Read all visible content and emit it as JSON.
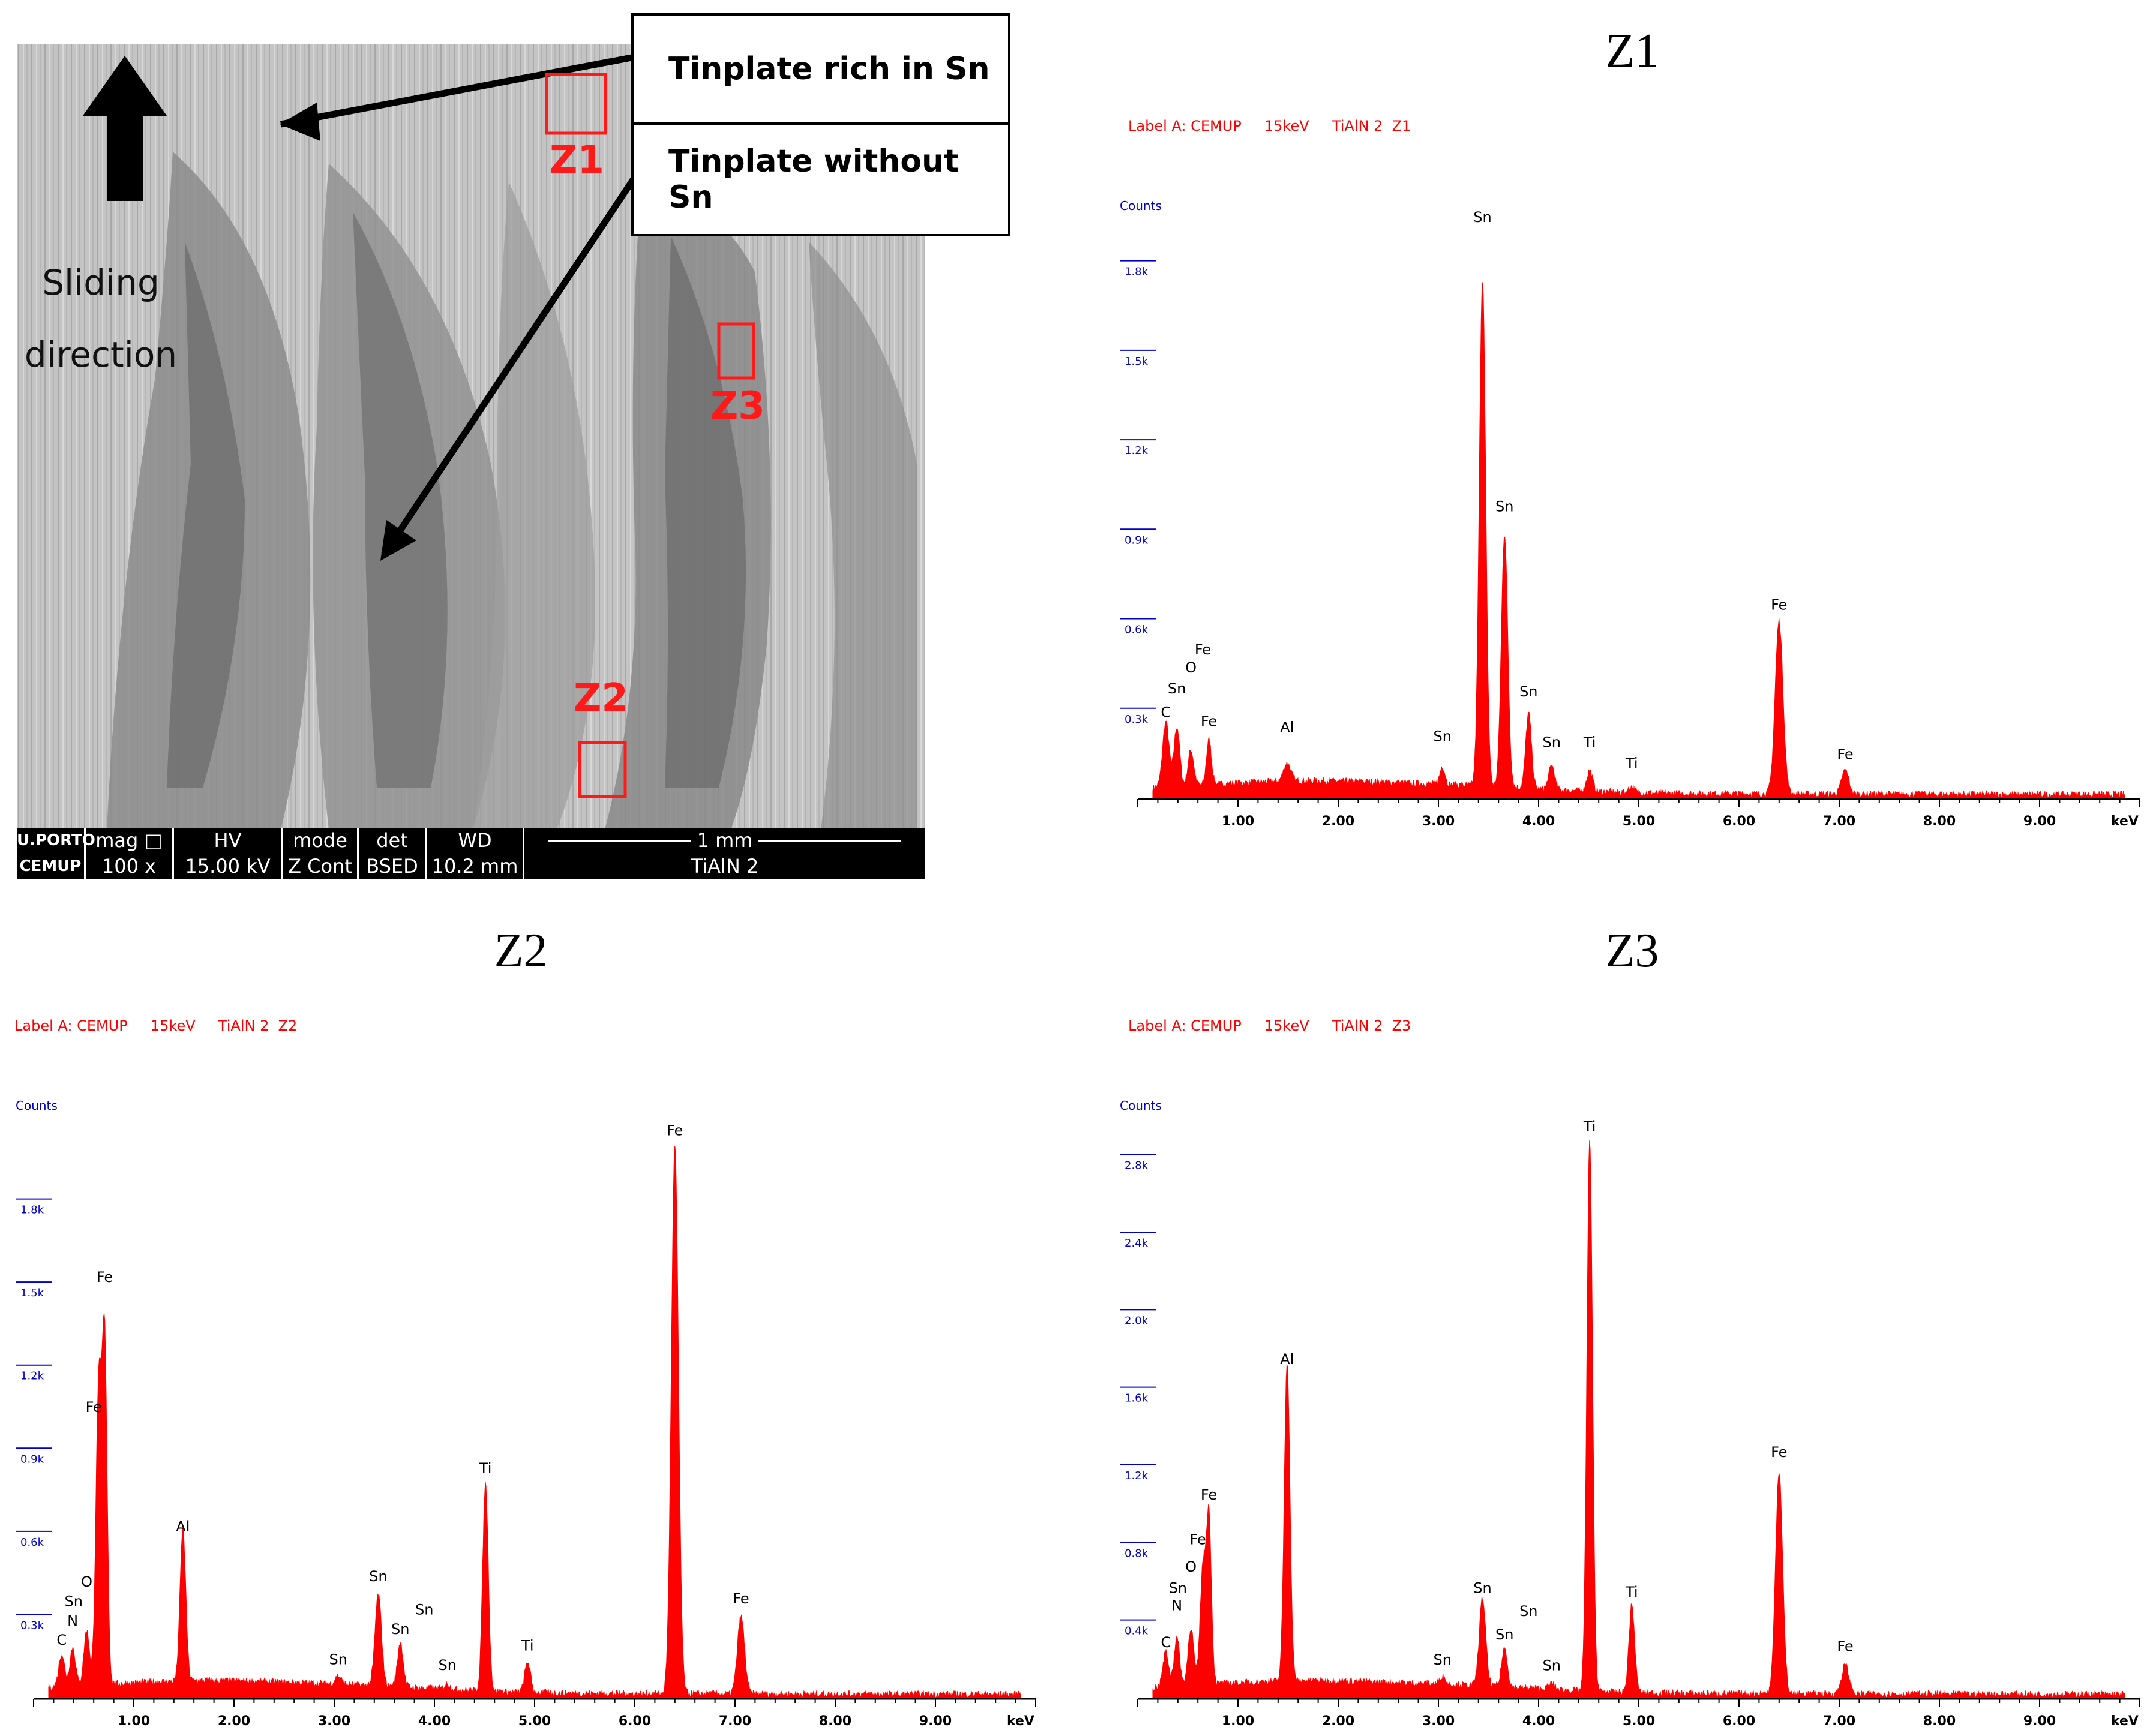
{
  "sem": {
    "callout_rich": "Tinplate rich in Sn",
    "callout_without": "Tinplate without Sn",
    "sliding_line1": "Sliding",
    "sliding_line2": "direction",
    "zone_labels": [
      "Z1",
      "Z2",
      "Z3"
    ],
    "infobar": {
      "logo_top": "U.PORTO",
      "logo_bottom": "CEMUP",
      "mag_label": "mag □",
      "mag_value": "100 x",
      "hv_label": "HV",
      "hv_value": "15.00 kV",
      "mode_label": "mode",
      "mode_value": "Z Cont",
      "det_label": "det",
      "det_value": "BSED",
      "wd_label": "WD",
      "wd_value": "10.2 mm",
      "scale_label": "1 mm",
      "sample_label": "TiAlN 2"
    }
  },
  "chart_data": [
    {
      "type": "area",
      "title": "Z1",
      "label": "Label A: CEMUP     15keV     TiAlN 2  Z1",
      "ylabel": "Counts",
      "xlabel": "keV",
      "color": "#ff0000",
      "xlim": [
        0,
        10
      ],
      "ylim": [
        0,
        1.95
      ],
      "x_ticks": [
        "1.00",
        "2.00",
        "3.00",
        "4.00",
        "5.00",
        "6.00",
        "7.00",
        "8.00",
        "9.00"
      ],
      "y_ticks": [
        "0.3k",
        "0.6k",
        "0.9k",
        "1.2k",
        "1.5k",
        "1.8k"
      ],
      "y_tick_values": [
        0.3,
        0.6,
        0.9,
        1.2,
        1.5,
        1.8
      ],
      "peaks": [
        [
          0.28,
          0.22,
          0.045
        ],
        [
          0.39,
          0.2,
          0.04
        ],
        [
          0.53,
          0.12,
          0.04
        ],
        [
          0.71,
          0.15,
          0.035
        ],
        [
          1.49,
          0.06,
          0.05
        ],
        [
          3.04,
          0.06,
          0.035
        ],
        [
          3.44,
          1.7,
          0.045
        ],
        [
          3.66,
          0.85,
          0.045
        ],
        [
          3.9,
          0.25,
          0.04
        ],
        [
          4.13,
          0.08,
          0.04
        ],
        [
          4.51,
          0.07,
          0.04
        ],
        [
          4.93,
          0.02,
          0.04
        ],
        [
          6.4,
          0.58,
          0.055
        ],
        [
          7.06,
          0.08,
          0.05
        ]
      ],
      "peak_labels": [
        {
          "text": "C",
          "x": 0.28,
          "y": 0.27
        },
        {
          "text": "Sn",
          "x": 0.39,
          "y": 0.35
        },
        {
          "text": "O",
          "x": 0.53,
          "y": 0.42
        },
        {
          "text": "Fe",
          "x": 0.65,
          "y": 0.48
        },
        {
          "text": "Fe",
          "x": 0.71,
          "y": 0.24
        },
        {
          "text": "Al",
          "x": 1.49,
          "y": 0.22
        },
        {
          "text": "Sn",
          "x": 3.04,
          "y": 0.19
        },
        {
          "text": "Sn",
          "x": 3.44,
          "y": 1.93
        },
        {
          "text": "Sn",
          "x": 3.66,
          "y": 0.96
        },
        {
          "text": "Sn",
          "x": 3.9,
          "y": 0.34
        },
        {
          "text": "Sn",
          "x": 4.13,
          "y": 0.17
        },
        {
          "text": "Ti",
          "x": 4.51,
          "y": 0.17
        },
        {
          "text": "Ti",
          "x": 4.93,
          "y": 0.1
        },
        {
          "text": "Fe",
          "x": 6.4,
          "y": 0.63
        },
        {
          "text": "Fe",
          "x": 7.06,
          "y": 0.13
        }
      ]
    },
    {
      "type": "area",
      "title": "Z2",
      "label": "Label A: CEMUP     15keV     TiAlN 2  Z2",
      "ylabel": "Counts",
      "xlabel": "keV",
      "color": "#ff0000",
      "xlim": [
        0,
        10
      ],
      "ylim": [
        0,
        2.1
      ],
      "x_ticks": [
        "1.00",
        "2.00",
        "3.00",
        "4.00",
        "5.00",
        "6.00",
        "7.00",
        "8.00",
        "9.00"
      ],
      "y_ticks": [
        "0.3k",
        "0.6k",
        "0.9k",
        "1.2k",
        "1.5k",
        "1.8k"
      ],
      "y_tick_values": [
        0.3,
        0.6,
        0.9,
        1.2,
        1.5,
        1.8
      ],
      "peaks": [
        [
          0.28,
          0.12,
          0.04
        ],
        [
          0.39,
          0.14,
          0.04
        ],
        [
          0.53,
          0.2,
          0.04
        ],
        [
          0.65,
          1.08,
          0.04
        ],
        [
          0.71,
          1.2,
          0.035
        ],
        [
          1.49,
          0.55,
          0.04
        ],
        [
          3.04,
          0.03,
          0.04
        ],
        [
          3.44,
          0.33,
          0.045
        ],
        [
          3.66,
          0.16,
          0.04
        ],
        [
          4.13,
          0.02,
          0.04
        ],
        [
          4.51,
          0.75,
          0.04
        ],
        [
          4.93,
          0.11,
          0.04
        ],
        [
          6.4,
          1.98,
          0.05
        ],
        [
          7.06,
          0.28,
          0.05
        ]
      ],
      "peak_labels": [
        {
          "text": "C",
          "x": 0.28,
          "y": 0.19
        },
        {
          "text": "N",
          "x": 0.39,
          "y": 0.26
        },
        {
          "text": "Sn",
          "x": 0.4,
          "y": 0.33
        },
        {
          "text": "O",
          "x": 0.53,
          "y": 0.4
        },
        {
          "text": "Fe",
          "x": 0.6,
          "y": 1.03
        },
        {
          "text": "Fe",
          "x": 0.71,
          "y": 1.5
        },
        {
          "text": "Al",
          "x": 1.49,
          "y": 0.6
        },
        {
          "text": "Sn",
          "x": 3.04,
          "y": 0.12
        },
        {
          "text": "Sn",
          "x": 3.44,
          "y": 0.42
        },
        {
          "text": "Sn",
          "x": 3.66,
          "y": 0.23
        },
        {
          "text": "Sn",
          "x": 3.9,
          "y": 0.3
        },
        {
          "text": "Sn",
          "x": 4.13,
          "y": 0.1
        },
        {
          "text": "Ti",
          "x": 4.51,
          "y": 0.81
        },
        {
          "text": "Ti",
          "x": 4.93,
          "y": 0.17
        },
        {
          "text": "Fe",
          "x": 6.4,
          "y": 2.03
        },
        {
          "text": "Fe",
          "x": 7.06,
          "y": 0.34
        }
      ]
    },
    {
      "type": "area",
      "title": "Z3",
      "label": "Label A: CEMUP     15keV     TiAlN 2  Z3",
      "ylabel": "Counts",
      "xlabel": "keV",
      "color": "#ff0000",
      "xlim": [
        0,
        10
      ],
      "ylim": [
        0,
        3.0
      ],
      "x_ticks": [
        "1.00",
        "2.00",
        "3.00",
        "4.00",
        "5.00",
        "6.00",
        "7.00",
        "8.00",
        "9.00"
      ],
      "y_ticks": [
        "0.4k",
        "0.8k",
        "1.2k",
        "1.6k",
        "2.0k",
        "2.4k",
        "2.8k"
      ],
      "y_tick_values": [
        0.4,
        0.8,
        1.2,
        1.6,
        2.0,
        2.4,
        2.8
      ],
      "peaks": [
        [
          0.28,
          0.18,
          0.04
        ],
        [
          0.39,
          0.25,
          0.04
        ],
        [
          0.53,
          0.3,
          0.04
        ],
        [
          0.65,
          0.6,
          0.04
        ],
        [
          0.71,
          0.85,
          0.035
        ],
        [
          1.49,
          1.65,
          0.04
        ],
        [
          3.04,
          0.04,
          0.04
        ],
        [
          3.44,
          0.45,
          0.045
        ],
        [
          3.66,
          0.2,
          0.04
        ],
        [
          4.13,
          0.03,
          0.04
        ],
        [
          4.51,
          2.85,
          0.04
        ],
        [
          4.93,
          0.45,
          0.04
        ],
        [
          6.4,
          1.15,
          0.05
        ],
        [
          7.06,
          0.15,
          0.05
        ]
      ],
      "peak_labels": [
        {
          "text": "C",
          "x": 0.28,
          "y": 0.26
        },
        {
          "text": "N",
          "x": 0.39,
          "y": 0.45
        },
        {
          "text": "Sn",
          "x": 0.4,
          "y": 0.54
        },
        {
          "text": "O",
          "x": 0.53,
          "y": 0.65
        },
        {
          "text": "Fe",
          "x": 0.6,
          "y": 0.79
        },
        {
          "text": "Fe",
          "x": 0.71,
          "y": 1.02
        },
        {
          "text": "Al",
          "x": 1.49,
          "y": 1.72
        },
        {
          "text": "Sn",
          "x": 3.04,
          "y": 0.17
        },
        {
          "text": "Sn",
          "x": 3.44,
          "y": 0.54
        },
        {
          "text": "Sn",
          "x": 3.66,
          "y": 0.3
        },
        {
          "text": "Sn",
          "x": 3.9,
          "y": 0.42
        },
        {
          "text": "Sn",
          "x": 4.13,
          "y": 0.14
        },
        {
          "text": "Ti",
          "x": 4.51,
          "y": 2.92
        },
        {
          "text": "Ti",
          "x": 4.93,
          "y": 0.52
        },
        {
          "text": "Fe",
          "x": 6.4,
          "y": 1.24
        },
        {
          "text": "Fe",
          "x": 7.06,
          "y": 0.24
        }
      ]
    }
  ]
}
